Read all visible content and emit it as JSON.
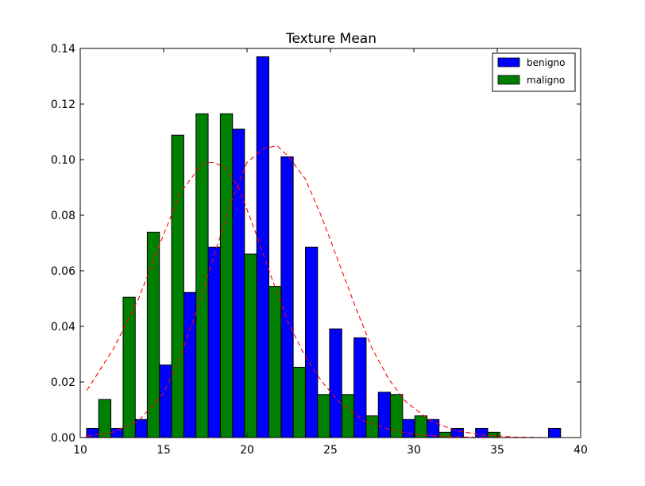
{
  "chart_data": {
    "type": "bar",
    "title": "Texture Mean",
    "xlabel": "",
    "ylabel": "",
    "xlim": [
      10,
      40
    ],
    "ylim": [
      0,
      0.14
    ],
    "x_ticks": [
      10,
      15,
      20,
      25,
      30,
      35,
      40
    ],
    "x_tick_labels": [
      "10",
      "15",
      "20",
      "25",
      "30",
      "35",
      "40"
    ],
    "y_ticks": [
      0.0,
      0.02,
      0.04,
      0.06,
      0.08,
      0.1,
      0.12,
      0.14
    ],
    "y_tick_labels": [
      "0.00",
      "0.02",
      "0.04",
      "0.06",
      "0.08",
      "0.10",
      "0.12",
      "0.14"
    ],
    "grid": false,
    "legend_position": "top-right",
    "bin_starts": [
      10.38,
      11.84,
      13.29,
      14.75,
      16.21,
      17.67,
      19.12,
      20.58,
      22.04,
      23.5,
      24.95,
      26.41,
      27.87,
      29.33,
      30.78,
      32.24,
      33.7,
      35.16,
      36.61,
      38.07
    ],
    "bin_width": 1.458,
    "series": [
      {
        "name": "benigno",
        "color": "#0000ff",
        "values": [
          0.0033,
          0.0033,
          0.0065,
          0.0261,
          0.0522,
          0.0685,
          0.111,
          0.137,
          0.101,
          0.0685,
          0.0391,
          0.0359,
          0.0163,
          0.0065,
          0.0065,
          0.0033,
          0.0033,
          0.0,
          0.0,
          0.0033
        ]
      },
      {
        "name": "maligno",
        "color": "#008000",
        "values": [
          0.0137,
          0.0505,
          0.0739,
          0.1088,
          0.1165,
          0.1165,
          0.066,
          0.0544,
          0.0253,
          0.0155,
          0.0155,
          0.0078,
          0.0155,
          0.0078,
          0.0019,
          0.0,
          0.0019,
          0.0,
          0.0,
          0.0
        ]
      }
    ],
    "fit_curves": [
      {
        "style": "dashed",
        "color": "#ff0000",
        "x": [
          10.4,
          12,
          13.5,
          15,
          16,
          17,
          17.5,
          18,
          18.7,
          19.5,
          20.5,
          21.5,
          22.5,
          23.5,
          24.5,
          25.5,
          27,
          28.5,
          30,
          32,
          34,
          36,
          38,
          39
        ],
        "y": [
          0.017,
          0.032,
          0.05,
          0.073,
          0.088,
          0.096,
          0.099,
          0.099,
          0.097,
          0.09,
          0.074,
          0.057,
          0.041,
          0.029,
          0.02,
          0.013,
          0.006,
          0.003,
          0.0011,
          0.0003,
          0.0001,
          0.0,
          0.0,
          0.0
        ]
      },
      {
        "style": "dashed",
        "color": "#ff0000",
        "x": [
          10.4,
          12,
          13.5,
          15,
          16,
          17,
          18,
          19,
          20,
          21,
          21.8,
          22.5,
          23.5,
          24.5,
          25.5,
          26.5,
          27.5,
          28.5,
          29.5,
          31,
          32.5,
          34,
          36,
          38,
          39
        ],
        "y": [
          0.0005,
          0.002,
          0.006,
          0.016,
          0.029,
          0.046,
          0.065,
          0.084,
          0.099,
          0.104,
          0.105,
          0.101,
          0.093,
          0.079,
          0.063,
          0.047,
          0.032,
          0.021,
          0.013,
          0.006,
          0.0025,
          0.001,
          0.0002,
          0.0,
          0.0
        ]
      }
    ]
  }
}
